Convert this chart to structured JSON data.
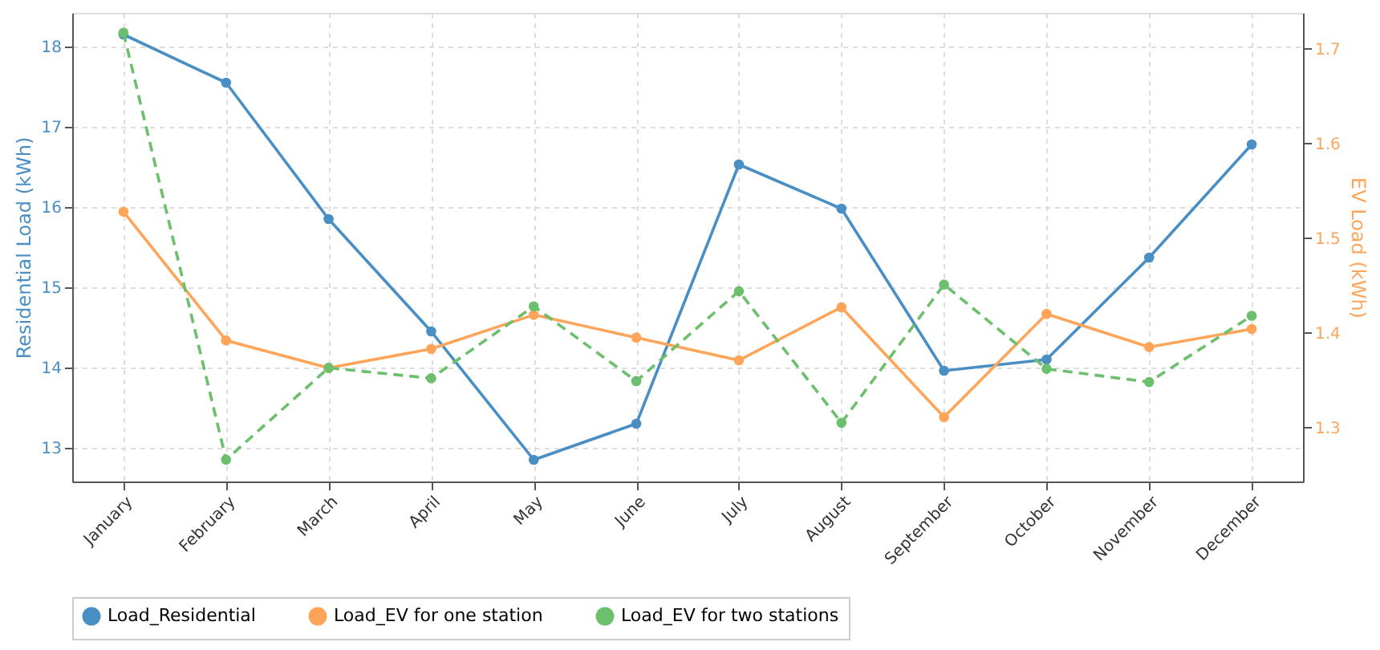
{
  "chart_data": {
    "type": "line",
    "xlabel": null,
    "ylabel": "Residential Load (kWh)",
    "y2label": "EV Load (kWh)",
    "categories": [
      "January",
      "February",
      "March",
      "April",
      "May",
      "June",
      "July",
      "August",
      "September",
      "October",
      "November",
      "December"
    ],
    "ylim": [
      12.58,
      18.42
    ],
    "yticks": [
      13,
      14,
      15,
      16,
      17,
      18
    ],
    "y2lim": [
      1.243,
      1.738
    ],
    "y2ticks": [
      1.3,
      1.4,
      1.5,
      1.6,
      1.7
    ],
    "grid": true,
    "legend": "bottom",
    "marker": "circle",
    "series": [
      {
        "name": "Load_Residential",
        "color": "#4a8fc4",
        "axis": "y",
        "line_style": "solid",
        "values": [
          18.15,
          17.55,
          15.85,
          14.45,
          12.85,
          13.3,
          16.53,
          15.98,
          13.96,
          14.1,
          15.37,
          16.78
        ]
      },
      {
        "name": "Load_EV for one station",
        "color": "#ffa55a",
        "axis": "y2",
        "line_style": "solid",
        "values": [
          1.528,
          1.392,
          1.363,
          1.383,
          1.419,
          1.395,
          1.371,
          1.427,
          1.311,
          1.42,
          1.385,
          1.404
        ]
      },
      {
        "name": "Load_EV for two stations",
        "color": "#6cbf6c",
        "axis": "y2",
        "line_style": "dashed",
        "values": [
          1.717,
          1.266,
          1.363,
          1.352,
          1.428,
          1.349,
          1.444,
          1.305,
          1.451,
          1.362,
          1.348,
          1.418
        ]
      }
    ]
  }
}
